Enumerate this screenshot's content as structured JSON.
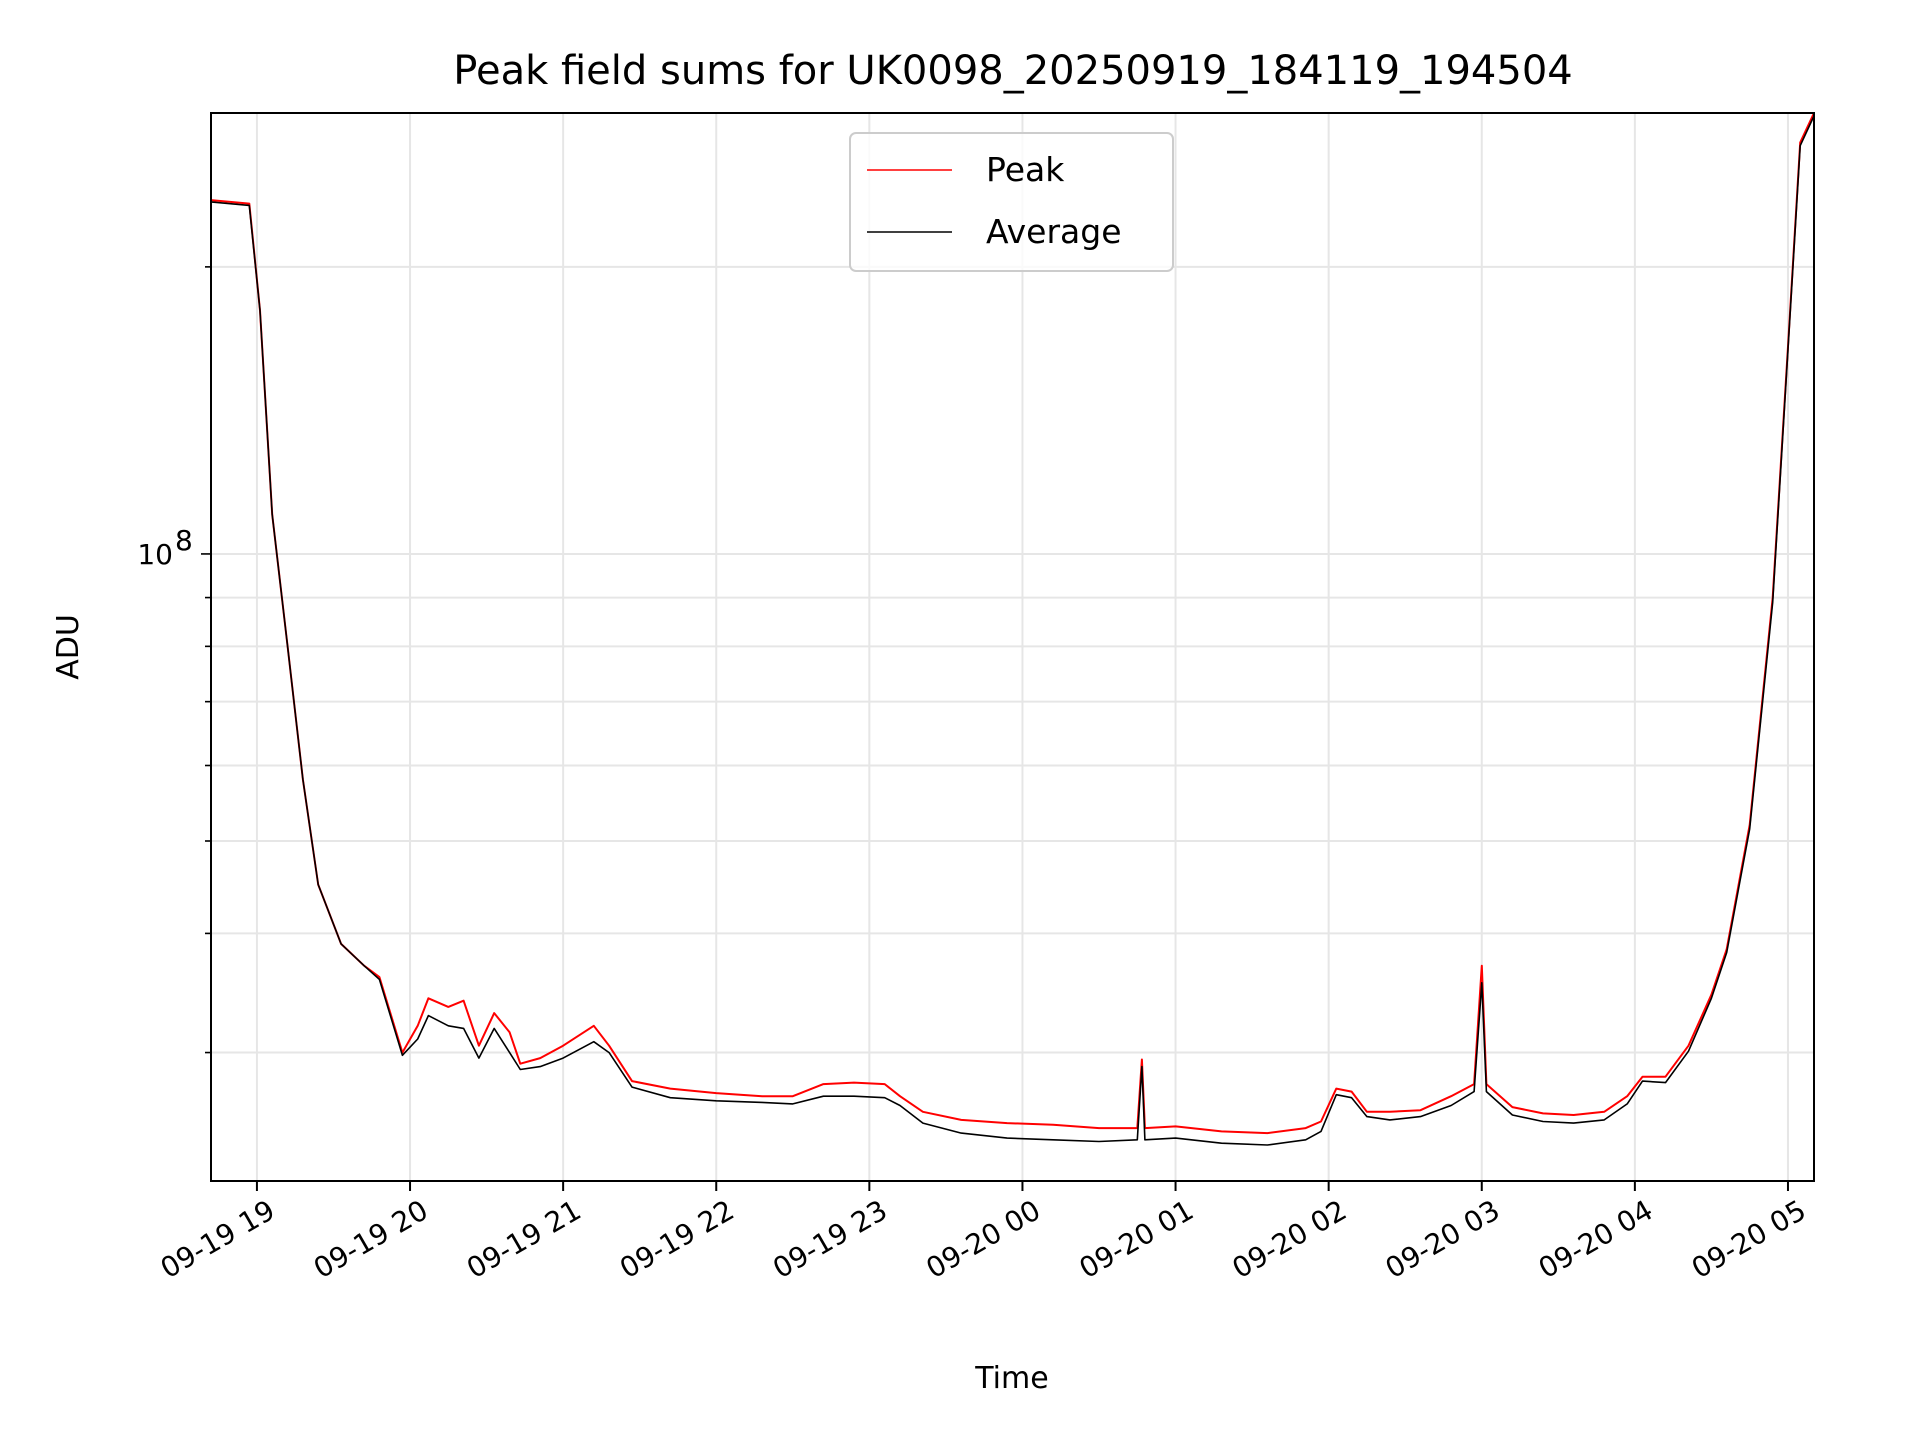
{
  "chart_data": {
    "type": "line",
    "title": "Peak field sums for UK0098_20250919_184119_194504",
    "xlabel": "Time",
    "ylabel": "ADU",
    "yscale": "log",
    "ylim": [
      22000000,
      290000000
    ],
    "xlim": [
      18.7,
      29.17
    ],
    "grid": true,
    "legend_position": "top-center",
    "x_ticks": [
      {
        "value": 19,
        "label": "09-19 19"
      },
      {
        "value": 20,
        "label": "09-19 20"
      },
      {
        "value": 21,
        "label": "09-19 21"
      },
      {
        "value": 22,
        "label": "09-19 22"
      },
      {
        "value": 23,
        "label": "09-19 23"
      },
      {
        "value": 24,
        "label": "09-20 00"
      },
      {
        "value": 25,
        "label": "09-20 01"
      },
      {
        "value": 26,
        "label": "09-20 02"
      },
      {
        "value": 27,
        "label": "09-20 03"
      },
      {
        "value": 28,
        "label": "09-20 04"
      },
      {
        "value": 29,
        "label": "09-20 05"
      }
    ],
    "y_ticks": [
      {
        "value": 100000000,
        "base": "10",
        "exp": "8"
      }
    ],
    "series": [
      {
        "name": "Peak",
        "color": "#ff0000",
        "points": [
          [
            18.7,
            235000000
          ],
          [
            18.95,
            233000000
          ],
          [
            19.02,
            180000000
          ],
          [
            19.1,
            110000000
          ],
          [
            19.2,
            80000000
          ],
          [
            19.3,
            58000000
          ],
          [
            19.4,
            45000000
          ],
          [
            19.55,
            39000000
          ],
          [
            19.7,
            37000000
          ],
          [
            19.8,
            36000000
          ],
          [
            19.95,
            30000000
          ],
          [
            20.05,
            32000000
          ],
          [
            20.12,
            34200000
          ],
          [
            20.25,
            33500000
          ],
          [
            20.35,
            34000000
          ],
          [
            20.45,
            30500000
          ],
          [
            20.55,
            33000000
          ],
          [
            20.65,
            31500000
          ],
          [
            20.72,
            29200000
          ],
          [
            20.85,
            29600000
          ],
          [
            21.0,
            30500000
          ],
          [
            21.2,
            32000000
          ],
          [
            21.3,
            30500000
          ],
          [
            21.45,
            28000000
          ],
          [
            21.7,
            27500000
          ],
          [
            22.0,
            27200000
          ],
          [
            22.3,
            27000000
          ],
          [
            22.5,
            27000000
          ],
          [
            22.7,
            27800000
          ],
          [
            22.9,
            27900000
          ],
          [
            23.1,
            27800000
          ],
          [
            23.2,
            27000000
          ],
          [
            23.35,
            26000000
          ],
          [
            23.6,
            25500000
          ],
          [
            23.9,
            25300000
          ],
          [
            24.2,
            25200000
          ],
          [
            24.5,
            25000000
          ],
          [
            24.75,
            25000000
          ],
          [
            24.78,
            29500000
          ],
          [
            24.8,
            25000000
          ],
          [
            25.0,
            25100000
          ],
          [
            25.3,
            24800000
          ],
          [
            25.6,
            24700000
          ],
          [
            25.85,
            25000000
          ],
          [
            25.95,
            25400000
          ],
          [
            26.05,
            27500000
          ],
          [
            26.15,
            27300000
          ],
          [
            26.25,
            26000000
          ],
          [
            26.4,
            26000000
          ],
          [
            26.6,
            26100000
          ],
          [
            26.8,
            27000000
          ],
          [
            26.95,
            27800000
          ],
          [
            27.0,
            37000000
          ],
          [
            27.03,
            27800000
          ],
          [
            27.2,
            26300000
          ],
          [
            27.4,
            25900000
          ],
          [
            27.6,
            25800000
          ],
          [
            27.8,
            26000000
          ],
          [
            27.95,
            27000000
          ],
          [
            28.05,
            28300000
          ],
          [
            28.2,
            28300000
          ],
          [
            28.35,
            30500000
          ],
          [
            28.5,
            34500000
          ],
          [
            28.6,
            38500000
          ],
          [
            28.75,
            52000000
          ],
          [
            28.9,
            90000000
          ],
          [
            29.0,
            165000000
          ],
          [
            29.08,
            270000000
          ],
          [
            29.17,
            290000000
          ]
        ]
      },
      {
        "name": "Average",
        "color": "#000000",
        "points": [
          [
            18.7,
            234000000
          ],
          [
            18.95,
            232000000
          ],
          [
            19.02,
            180000000
          ],
          [
            19.1,
            110000000
          ],
          [
            19.2,
            80000000
          ],
          [
            19.3,
            58000000
          ],
          [
            19.4,
            45000000
          ],
          [
            19.55,
            39000000
          ],
          [
            19.7,
            37000000
          ],
          [
            19.8,
            35800000
          ],
          [
            19.95,
            29800000
          ],
          [
            20.05,
            31000000
          ],
          [
            20.12,
            32800000
          ],
          [
            20.25,
            32000000
          ],
          [
            20.35,
            31800000
          ],
          [
            20.45,
            29600000
          ],
          [
            20.55,
            31800000
          ],
          [
            20.65,
            30000000
          ],
          [
            20.72,
            28800000
          ],
          [
            20.85,
            29000000
          ],
          [
            21.0,
            29600000
          ],
          [
            21.2,
            30800000
          ],
          [
            21.3,
            30000000
          ],
          [
            21.45,
            27600000
          ],
          [
            21.7,
            26900000
          ],
          [
            22.0,
            26700000
          ],
          [
            22.3,
            26600000
          ],
          [
            22.5,
            26500000
          ],
          [
            22.7,
            27000000
          ],
          [
            22.9,
            27000000
          ],
          [
            23.1,
            26900000
          ],
          [
            23.2,
            26400000
          ],
          [
            23.35,
            25300000
          ],
          [
            23.6,
            24700000
          ],
          [
            23.9,
            24400000
          ],
          [
            24.2,
            24300000
          ],
          [
            24.5,
            24200000
          ],
          [
            24.75,
            24300000
          ],
          [
            24.78,
            29000000
          ],
          [
            24.8,
            24300000
          ],
          [
            25.0,
            24400000
          ],
          [
            25.3,
            24100000
          ],
          [
            25.6,
            24000000
          ],
          [
            25.85,
            24300000
          ],
          [
            25.95,
            24800000
          ],
          [
            26.05,
            27100000
          ],
          [
            26.15,
            26900000
          ],
          [
            26.25,
            25700000
          ],
          [
            26.4,
            25500000
          ],
          [
            26.6,
            25700000
          ],
          [
            26.8,
            26400000
          ],
          [
            26.95,
            27300000
          ],
          [
            27.0,
            35500000
          ],
          [
            27.03,
            27300000
          ],
          [
            27.2,
            25800000
          ],
          [
            27.4,
            25400000
          ],
          [
            27.6,
            25300000
          ],
          [
            27.8,
            25500000
          ],
          [
            27.95,
            26500000
          ],
          [
            28.05,
            28000000
          ],
          [
            28.2,
            27900000
          ],
          [
            28.35,
            30100000
          ],
          [
            28.5,
            34200000
          ],
          [
            28.6,
            38200000
          ],
          [
            28.75,
            51500000
          ],
          [
            28.9,
            89000000
          ],
          [
            29.0,
            164000000
          ],
          [
            29.08,
            268000000
          ],
          [
            29.17,
            288000000
          ]
        ]
      }
    ]
  }
}
